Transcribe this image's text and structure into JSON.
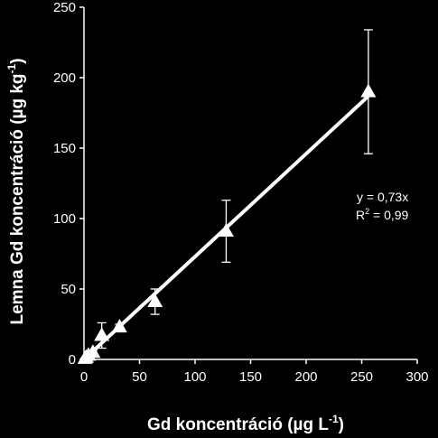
{
  "chart_data": {
    "type": "scatter",
    "xlabel": "Gd koncentráció (µg L",
    "xlabel_sup": "-1",
    "xlabel_end": ")",
    "ylabel": "Lemna Gd koncentráció (µg kg",
    "ylabel_sup": "-1",
    "ylabel_end": ")",
    "xlim": [
      0,
      300
    ],
    "ylim": [
      0,
      250
    ],
    "xticks": [
      "0",
      "50",
      "100",
      "150",
      "200",
      "250",
      "300"
    ],
    "yticks": [
      "0",
      "50",
      "100",
      "150",
      "200",
      "250"
    ],
    "grid": false,
    "legend": "none",
    "series": [
      {
        "marker": "triangle",
        "points": [
          {
            "x": 1,
            "y": 0.7,
            "err": 0.3
          },
          {
            "x": 2,
            "y": 1.5,
            "err": 0.5
          },
          {
            "x": 4,
            "y": 3,
            "err": 1
          },
          {
            "x": 8,
            "y": 5,
            "err": 1.5
          },
          {
            "x": 16,
            "y": 17,
            "err": 9
          },
          {
            "x": 32,
            "y": 23,
            "err": 2
          },
          {
            "x": 64,
            "y": 41,
            "err": 9
          },
          {
            "x": 128,
            "y": 91,
            "err": 22
          },
          {
            "x": 256,
            "y": 190,
            "err": 44
          }
        ]
      }
    ],
    "fit": {
      "slope": 0.73,
      "x_range": [
        0,
        256
      ]
    },
    "annotations": {
      "equation": "y = 0,73x",
      "r2_prefix": "R",
      "r2_sup": "2",
      "r2_suffix": " = 0,99"
    },
    "colors": {
      "background": "#000000",
      "foreground": "#ffffff"
    }
  }
}
